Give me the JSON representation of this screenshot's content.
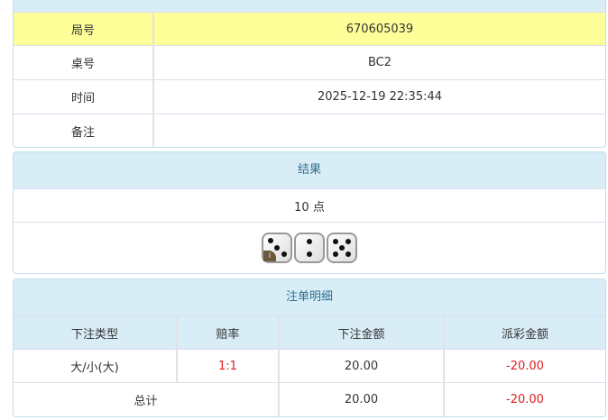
{
  "info": {
    "rows": [
      {
        "label": "局号",
        "value": "670605039"
      },
      {
        "label": "桌号",
        "value": "BC2"
      },
      {
        "label": "时间",
        "value": "2025-12-19 22:35:44"
      },
      {
        "label": "备注",
        "value": ""
      }
    ]
  },
  "result": {
    "title": "结果",
    "points": "10 点",
    "dice": [
      3,
      2,
      5
    ],
    "badge": "i"
  },
  "bets": {
    "title": "注单明细",
    "headers": [
      "下注类型",
      "赔率",
      "下注金额",
      "派彩金额"
    ],
    "rows": [
      {
        "type": "大/小(大)",
        "odds": "1:1",
        "amount": "20.00",
        "payout": "-20.00"
      }
    ],
    "total": {
      "label": "总计",
      "amount": "20.00",
      "payout": "-20.00"
    }
  },
  "colors": {
    "header_bg": "#d9edf7",
    "highlight_row": "#ffff99",
    "negative": "#e02020"
  }
}
